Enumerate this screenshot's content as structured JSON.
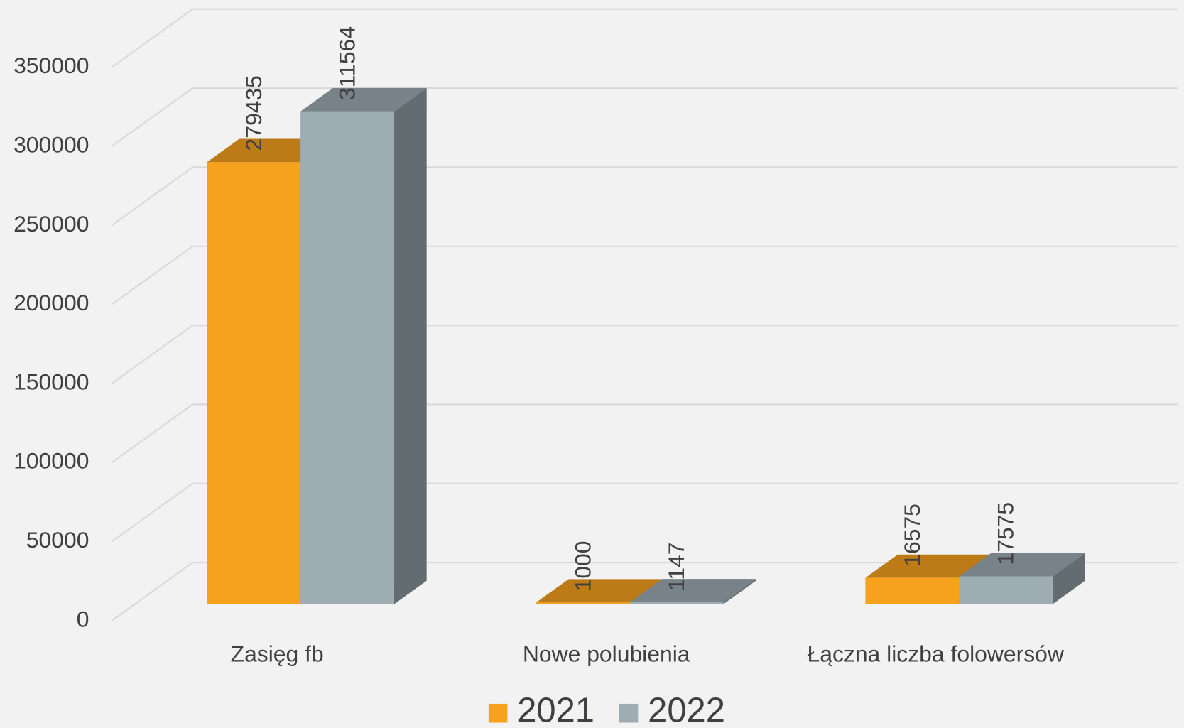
{
  "chart_data": {
    "type": "bar3d",
    "categories": [
      "Zasięg fb",
      "Nowe polubienia",
      "Łączna liczba folowersów"
    ],
    "series": [
      {
        "name": "2021",
        "color": "#F7A21D",
        "values": [
          279435,
          1000,
          16575
        ]
      },
      {
        "name": "2022",
        "color": "#9DADB3",
        "values": [
          311564,
          1147,
          17575
        ]
      }
    ],
    "ylim": [
      0,
      350000
    ],
    "yticks": [
      0,
      50000,
      100000,
      150000,
      200000,
      250000,
      300000,
      350000
    ],
    "grid": true,
    "legend": "bottom"
  }
}
